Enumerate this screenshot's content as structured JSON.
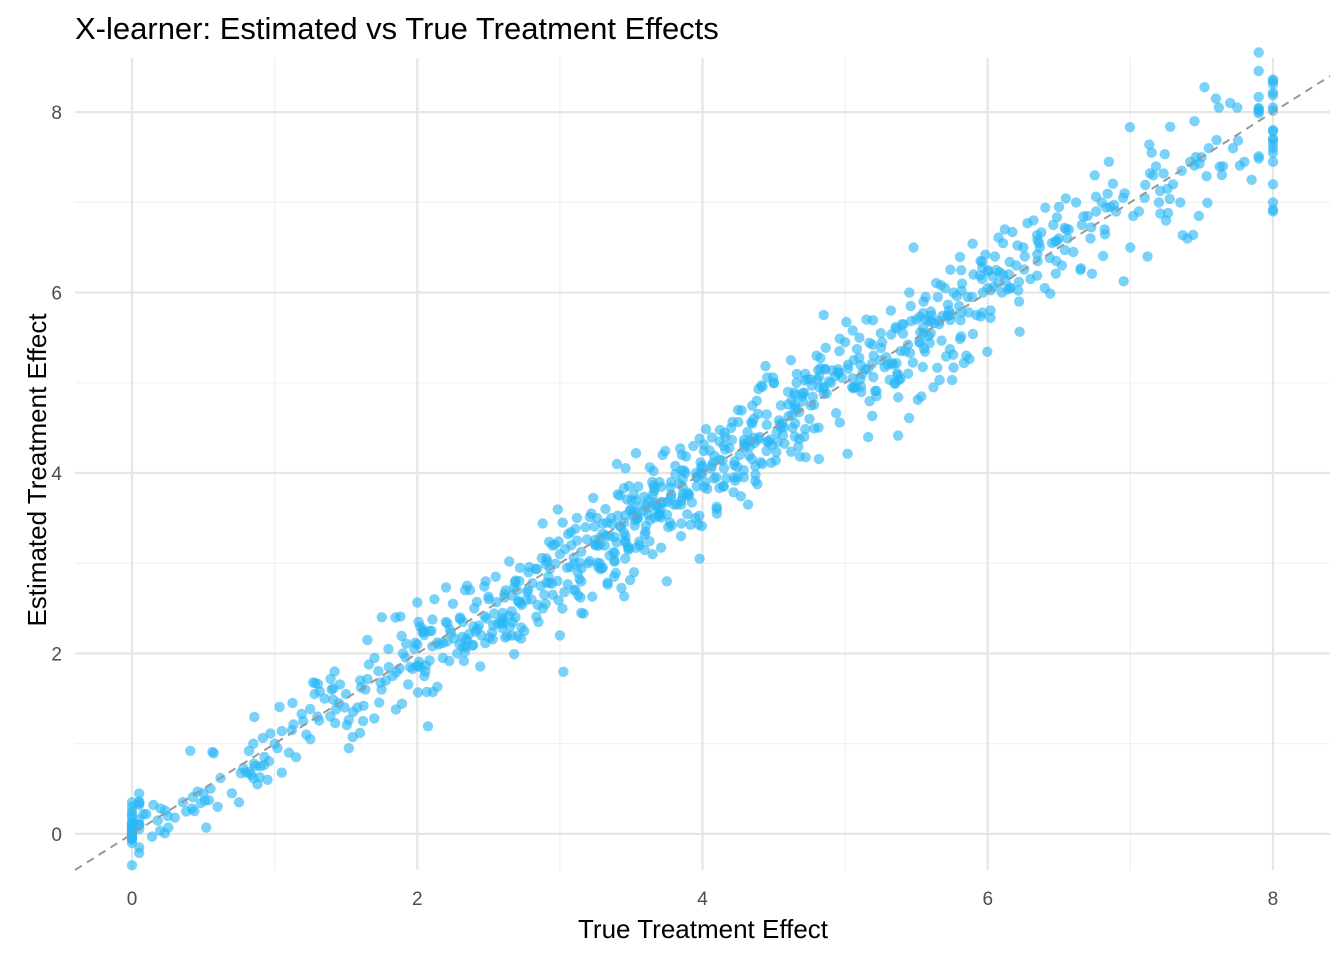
{
  "chart_data": {
    "type": "scatter",
    "title": "X-learner: Estimated vs True Treatment Effects",
    "xlabel": "True Treatment Effect",
    "ylabel": "Estimated Treatment Effect",
    "xlim": [
      -0.4,
      8.4
    ],
    "ylim": [
      -0.4,
      8.6
    ],
    "x_ticks": [
      0,
      2,
      4,
      6,
      8
    ],
    "y_ticks": [
      0,
      2,
      4,
      6,
      8
    ],
    "x_tick_labels": [
      "0",
      "2",
      "4",
      "6",
      "8"
    ],
    "y_tick_labels": [
      "0",
      "2",
      "4",
      "6",
      "8"
    ],
    "grid": true,
    "point_color": "#29b6f6",
    "reference_line": {
      "type": "y=x",
      "color": "#999999",
      "style": "dashed"
    },
    "n_points": 1000,
    "series": [
      {
        "points": [
          [
            0,
            0.35
          ],
          [
            0,
            0.25
          ],
          [
            0,
            0.18
          ],
          [
            0,
            0.12
          ],
          [
            0,
            0.05
          ],
          [
            0,
            0.0
          ],
          [
            0,
            -0.05
          ],
          [
            0,
            -0.1
          ],
          [
            0,
            0.3
          ],
          [
            0,
            0.08
          ],
          [
            0.15,
            0.32
          ],
          [
            0.14,
            -0.03
          ],
          [
            0.18,
            0.15
          ],
          [
            0.2,
            0.28
          ],
          [
            0.1,
            0.22
          ],
          [
            0.3,
            0.18
          ],
          [
            0.38,
            0.25
          ],
          [
            0.42,
            0.28
          ],
          [
            0.52,
            0.07
          ],
          [
            0.5,
            0.45
          ],
          [
            0.55,
            0.5
          ],
          [
            0.62,
            0.62
          ],
          [
            0.7,
            0.45
          ],
          [
            0.75,
            0.35
          ],
          [
            0.8,
            0.68
          ],
          [
            0.82,
            0.92
          ],
          [
            0.85,
            1.0
          ],
          [
            0.9,
            0.75
          ],
          [
            0.95,
            0.6
          ],
          [
            1.0,
            1.0
          ],
          [
            1.02,
            0.95
          ],
          [
            1.1,
            0.9
          ],
          [
            1.05,
            0.68
          ],
          [
            1.12,
            1.15
          ],
          [
            1.2,
            1.25
          ],
          [
            1.25,
            1.05
          ],
          [
            1.3,
            1.3
          ],
          [
            1.35,
            1.5
          ],
          [
            1.4,
            1.6
          ],
          [
            1.45,
            1.45
          ],
          [
            1.5,
            1.55
          ],
          [
            1.52,
            0.95
          ],
          [
            1.55,
            1.35
          ],
          [
            1.6,
            1.7
          ],
          [
            1.62,
            1.25
          ],
          [
            1.65,
            2.15
          ],
          [
            1.7,
            1.95
          ],
          [
            1.75,
            1.6
          ],
          [
            1.8,
            1.85
          ],
          [
            1.85,
            1.38
          ],
          [
            1.9,
            2.0
          ],
          [
            1.95,
            1.85
          ],
          [
            2.0,
            2.1
          ],
          [
            2.02,
            2.3
          ],
          [
            2.05,
            1.75
          ],
          [
            2.1,
            2.25
          ],
          [
            2.12,
            2.6
          ],
          [
            2.18,
            1.95
          ],
          [
            2.2,
            2.35
          ],
          [
            2.25,
            2.55
          ],
          [
            2.28,
            2.0
          ],
          [
            2.3,
            2.4
          ],
          [
            2.35,
            2.75
          ],
          [
            2.4,
            2.5
          ],
          [
            2.45,
            2.2
          ],
          [
            2.5,
            2.6
          ],
          [
            2.55,
            2.85
          ],
          [
            2.6,
            2.45
          ],
          [
            2.65,
            2.3
          ],
          [
            2.7,
            2.7
          ],
          [
            2.72,
            2.95
          ],
          [
            2.75,
            2.25
          ],
          [
            2.8,
            2.6
          ],
          [
            2.85,
            2.35
          ],
          [
            2.9,
            2.55
          ],
          [
            2.92,
            2.85
          ],
          [
            2.95,
            2.65
          ],
          [
            3.0,
            3.1
          ],
          [
            3.0,
            2.2
          ],
          [
            3.02,
            3.45
          ],
          [
            3.05,
            2.95
          ],
          [
            3.1,
            2.7
          ],
          [
            3.12,
            3.25
          ],
          [
            3.15,
            2.45
          ],
          [
            3.2,
            3.0
          ],
          [
            3.22,
            3.55
          ],
          [
            3.25,
            3.2
          ],
          [
            3.3,
            2.95
          ],
          [
            3.32,
            3.6
          ],
          [
            3.35,
            3.3
          ],
          [
            3.38,
            2.85
          ],
          [
            3.4,
            4.1
          ],
          [
            3.42,
            3.75
          ],
          [
            3.45,
            3.45
          ],
          [
            3.48,
            3.15
          ],
          [
            3.5,
            3.6
          ],
          [
            3.52,
            2.9
          ],
          [
            3.55,
            3.85
          ],
          [
            3.6,
            3.35
          ],
          [
            3.62,
            3.7
          ],
          [
            3.65,
            3.1
          ],
          [
            3.7,
            3.55
          ],
          [
            3.72,
            4.2
          ],
          [
            3.75,
            2.8
          ],
          [
            3.78,
            3.9
          ],
          [
            3.8,
            3.65
          ],
          [
            3.85,
            3.3
          ],
          [
            3.88,
            4.0
          ],
          [
            3.9,
            3.75
          ],
          [
            3.95,
            3.5
          ],
          [
            3.98,
            3.05
          ],
          [
            4.0,
            4.0
          ],
          [
            4.02,
            3.9
          ],
          [
            4.05,
            4.25
          ],
          [
            4.1,
            3.6
          ],
          [
            4.12,
            4.35
          ],
          [
            4.15,
            3.85
          ],
          [
            4.2,
            4.5
          ],
          [
            4.22,
            3.95
          ],
          [
            4.25,
            4.7
          ],
          [
            4.3,
            4.3
          ],
          [
            4.32,
            3.65
          ],
          [
            4.35,
            4.55
          ],
          [
            4.38,
            4.8
          ],
          [
            4.4,
            4.4
          ],
          [
            4.42,
            4.1
          ],
          [
            4.45,
            4.65
          ],
          [
            4.5,
            5.0
          ],
          [
            4.52,
            4.45
          ],
          [
            4.55,
            4.75
          ],
          [
            4.6,
            4.9
          ],
          [
            4.62,
            5.25
          ],
          [
            4.65,
            4.55
          ],
          [
            4.7,
            4.85
          ],
          [
            4.72,
            5.1
          ],
          [
            4.75,
            4.6
          ],
          [
            4.8,
            5.3
          ],
          [
            4.82,
            4.95
          ],
          [
            4.85,
            5.75
          ],
          [
            4.9,
            5.0
          ],
          [
            4.95,
            5.15
          ],
          [
            5.0,
            5.45
          ],
          [
            5.02,
            5.2
          ],
          [
            5.05,
            4.95
          ],
          [
            5.1,
            5.5
          ],
          [
            5.12,
            5.1
          ],
          [
            5.15,
            5.7
          ],
          [
            5.2,
            5.3
          ],
          [
            5.22,
            4.85
          ],
          [
            5.25,
            5.55
          ],
          [
            5.3,
            5.2
          ],
          [
            5.32,
            5.8
          ],
          [
            5.35,
            5.0
          ],
          [
            5.4,
            5.65
          ],
          [
            5.42,
            5.35
          ],
          [
            5.45,
            6.0
          ],
          [
            5.48,
            6.5
          ],
          [
            5.5,
            5.7
          ],
          [
            5.52,
            5.45
          ],
          [
            5.55,
            5.9
          ],
          [
            5.6,
            5.55
          ],
          [
            5.62,
            4.95
          ],
          [
            5.65,
            5.95
          ],
          [
            5.7,
            6.05
          ],
          [
            5.72,
            5.75
          ],
          [
            5.75,
            5.03
          ],
          [
            5.8,
            5.85
          ],
          [
            5.82,
            6.1
          ],
          [
            5.85,
            5.3
          ],
          [
            5.9,
            6.2
          ],
          [
            5.92,
            5.75
          ],
          [
            5.95,
            6.35
          ],
          [
            6.0,
            6.05
          ],
          [
            6.02,
            5.8
          ],
          [
            6.05,
            6.4
          ],
          [
            6.1,
            6.0
          ],
          [
            6.12,
            6.7
          ],
          [
            6.15,
            6.2
          ],
          [
            6.2,
            6.3
          ],
          [
            6.22,
            5.9
          ],
          [
            6.25,
            6.5
          ],
          [
            6.3,
            6.15
          ],
          [
            6.32,
            6.8
          ],
          [
            6.35,
            6.35
          ],
          [
            6.4,
            6.05
          ],
          [
            6.45,
            6.55
          ],
          [
            6.5,
            6.95
          ],
          [
            6.52,
            6.3
          ],
          [
            6.55,
            6.7
          ],
          [
            6.6,
            6.45
          ],
          [
            6.62,
            7.0
          ],
          [
            6.65,
            6.25
          ],
          [
            6.7,
            6.85
          ],
          [
            6.72,
            6.6
          ],
          [
            6.75,
            7.3
          ],
          [
            6.8,
            7.0
          ],
          [
            6.82,
            6.7
          ],
          [
            6.85,
            7.45
          ],
          [
            6.9,
            6.9
          ],
          [
            6.95,
            7.05
          ],
          [
            7.0,
            6.5
          ],
          [
            7.02,
            6.85
          ],
          [
            7.1,
            7.05
          ],
          [
            7.12,
            6.4
          ],
          [
            7.15,
            7.55
          ],
          [
            7.2,
            7.0
          ],
          [
            7.25,
            6.8
          ],
          [
            7.3,
            7.2
          ],
          [
            7.35,
            7.0
          ],
          [
            7.4,
            6.6
          ],
          [
            7.42,
            7.45
          ],
          [
            7.45,
            7.9
          ],
          [
            7.48,
            6.85
          ],
          [
            7.5,
            7.5
          ],
          [
            7.55,
            7.6
          ],
          [
            7.6,
            8.15
          ],
          [
            7.62,
            8.05
          ],
          [
            7.65,
            7.4
          ],
          [
            7.7,
            8.1
          ],
          [
            7.72,
            7.6
          ],
          [
            7.75,
            8.05
          ],
          [
            7.8,
            7.45
          ],
          [
            7.85,
            7.25
          ],
          [
            8.0,
            8.05
          ],
          [
            8.0,
            7.8
          ],
          [
            8.0,
            7.7
          ],
          [
            8.0,
            7.6
          ],
          [
            8.0,
            7.45
          ],
          [
            8.0,
            7.2
          ],
          [
            8.0,
            7.0
          ],
          [
            8.0,
            6.9
          ],
          [
            8.0,
            7.55
          ],
          [
            8.0,
            6.92
          ],
          [
            8.0,
            7.65
          ],
          [
            0.25,
            0.2
          ],
          [
            0.6,
            0.3
          ],
          [
            0.88,
            0.55
          ],
          [
            1.15,
            0.85
          ],
          [
            1.28,
            1.55
          ],
          [
            1.42,
            1.8
          ],
          [
            1.58,
            1.4
          ],
          [
            1.78,
            1.7
          ],
          [
            1.98,
            2.05
          ],
          [
            2.15,
            2.1
          ],
          [
            2.32,
            2.35
          ],
          [
            2.48,
            2.8
          ],
          [
            2.62,
            2.7
          ],
          [
            2.78,
            2.9
          ],
          [
            2.88,
            2.5
          ],
          [
            3.08,
            3.2
          ],
          [
            3.18,
            3.4
          ],
          [
            3.28,
            3.0
          ],
          [
            3.36,
            3.5
          ],
          [
            3.46,
            3.3
          ],
          [
            3.56,
            3.2
          ],
          [
            3.66,
            3.8
          ],
          [
            3.76,
            3.4
          ],
          [
            3.86,
            3.85
          ],
          [
            3.96,
            3.95
          ],
          [
            4.06,
            4.05
          ],
          [
            4.16,
            4.4
          ],
          [
            4.26,
            4.2
          ],
          [
            4.36,
            4.6
          ],
          [
            4.46,
            4.35
          ],
          [
            4.56,
            4.55
          ],
          [
            4.66,
            5.0
          ],
          [
            4.76,
            4.75
          ],
          [
            4.86,
            5.15
          ],
          [
            4.96,
            5.35
          ],
          [
            5.06,
            5.25
          ],
          [
            5.16,
            5.15
          ],
          [
            5.26,
            5.45
          ],
          [
            5.36,
            5.6
          ],
          [
            5.46,
            5.85
          ],
          [
            5.56,
            5.7
          ],
          [
            5.66,
            5.65
          ],
          [
            5.76,
            6.0
          ],
          [
            5.86,
            5.95
          ],
          [
            5.96,
            6.15
          ],
          [
            6.06,
            6.25
          ],
          [
            6.16,
            6.05
          ],
          [
            6.26,
            6.4
          ],
          [
            6.36,
            6.55
          ],
          [
            6.46,
            6.75
          ],
          [
            6.56,
            6.6
          ],
          [
            6.66,
            6.75
          ],
          [
            6.76,
            6.9
          ],
          [
            6.86,
            6.95
          ],
          [
            6.96,
            7.1
          ],
          [
            7.06,
            6.9
          ],
          [
            7.16,
            7.3
          ],
          [
            7.26,
            7.15
          ],
          [
            7.36,
            7.35
          ],
          [
            7.46,
            7.5
          ]
        ]
      }
    ]
  }
}
